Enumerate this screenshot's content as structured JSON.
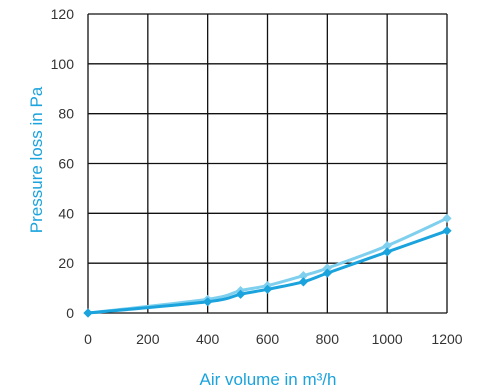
{
  "chart_data": {
    "type": "line",
    "title": "",
    "xlabel": "Air volume in m³/h",
    "ylabel": "Pressure loss in Pa",
    "xlim": [
      0,
      1200
    ],
    "ylim": [
      0,
      120
    ],
    "x_ticks": [
      "0",
      "200",
      "400",
      "600",
      "800",
      "1000",
      "1200"
    ],
    "y_ticks": [
      "0",
      "20",
      "40",
      "60",
      "80",
      "100",
      "120"
    ],
    "grid": true,
    "legend": "none",
    "series": [
      {
        "color": "#7fcfee",
        "x": [
          0,
          400,
          510,
          600,
          720,
          800,
          1000,
          1200
        ],
        "y": [
          0,
          5.5,
          9,
          11,
          15,
          18,
          27,
          38
        ]
      },
      {
        "color": "#1aa3dc",
        "x": [
          0,
          400,
          510,
          600,
          720,
          800,
          1000,
          1200
        ],
        "y": [
          0,
          4.5,
          7.5,
          9.5,
          12.5,
          16,
          24.5,
          33
        ]
      }
    ],
    "colors": {
      "axis_title": "#1aa3dc",
      "grid": "#111111",
      "tick": "#333333"
    }
  }
}
